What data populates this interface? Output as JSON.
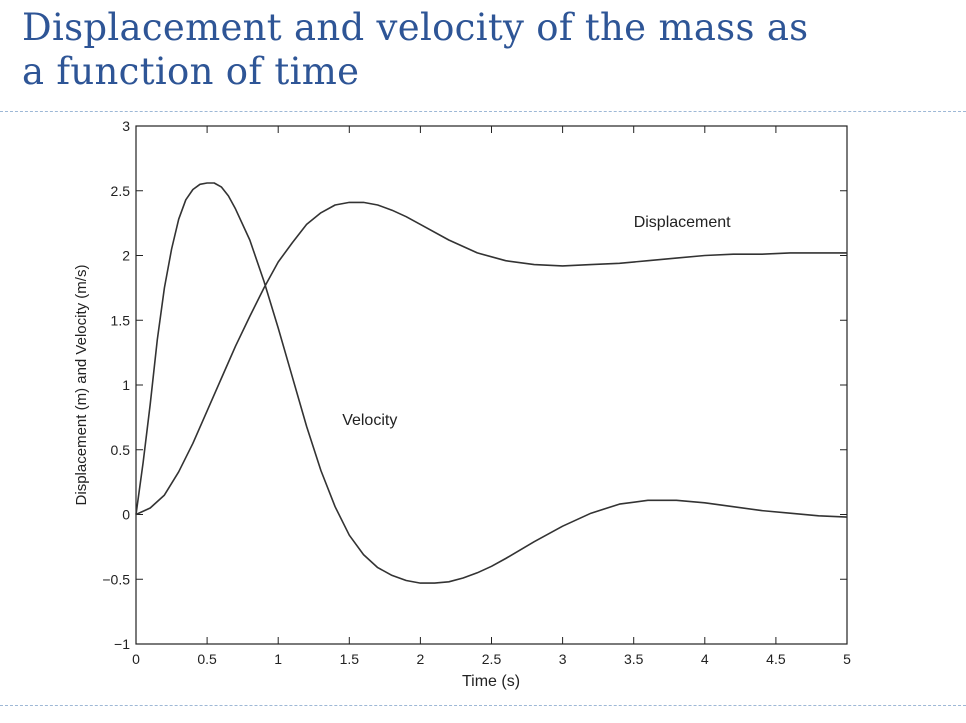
{
  "slide": {
    "title_line1": "Displacement and velocity of the mass as",
    "title_line2": "a function of time"
  },
  "chart_data": {
    "type": "line",
    "title": "",
    "xlabel": "Time (s)",
    "ylabel": "Displacement (m) and Velocity (m/s)",
    "xlim": [
      0,
      5
    ],
    "ylim": [
      -1,
      3
    ],
    "xticks": [
      0,
      0.5,
      1,
      1.5,
      2,
      2.5,
      3,
      3.5,
      4,
      4.5,
      5
    ],
    "yticks": [
      -1,
      -0.5,
      0,
      0.5,
      1,
      1.5,
      2,
      2.5,
      3
    ],
    "xtick_labels": [
      "0",
      "0.5",
      "1",
      "1.5",
      "2",
      "2.5",
      "3",
      "3.5",
      "4",
      "4.5",
      "5"
    ],
    "ytick_labels": [
      "−1",
      "−0.5",
      "0",
      "0.5",
      "1",
      "1.5",
      "2",
      "2.5",
      "3"
    ],
    "grid": false,
    "line_color": "#333333",
    "series": [
      {
        "name": "Displacement",
        "x": [
          0,
          0.1,
          0.2,
          0.3,
          0.4,
          0.5,
          0.6,
          0.7,
          0.8,
          0.9,
          1.0,
          1.1,
          1.2,
          1.3,
          1.4,
          1.5,
          1.6,
          1.7,
          1.8,
          1.9,
          2.0,
          2.2,
          2.4,
          2.6,
          2.8,
          3.0,
          3.2,
          3.4,
          3.6,
          3.8,
          4.0,
          4.2,
          4.4,
          4.6,
          4.8,
          5.0
        ],
        "y": [
          0,
          0.05,
          0.15,
          0.33,
          0.55,
          0.8,
          1.05,
          1.3,
          1.53,
          1.75,
          1.95,
          2.1,
          2.24,
          2.33,
          2.39,
          2.41,
          2.41,
          2.39,
          2.35,
          2.3,
          2.24,
          2.12,
          2.02,
          1.96,
          1.93,
          1.92,
          1.93,
          1.94,
          1.96,
          1.98,
          2.0,
          2.01,
          2.01,
          2.02,
          2.02,
          2.02
        ]
      },
      {
        "name": "Velocity",
        "x": [
          0,
          0.05,
          0.1,
          0.15,
          0.2,
          0.25,
          0.3,
          0.35,
          0.4,
          0.45,
          0.5,
          0.55,
          0.6,
          0.65,
          0.7,
          0.8,
          0.9,
          1.0,
          1.1,
          1.2,
          1.3,
          1.4,
          1.5,
          1.6,
          1.7,
          1.8,
          1.9,
          2.0,
          2.1,
          2.2,
          2.3,
          2.4,
          2.5,
          2.6,
          2.8,
          3.0,
          3.2,
          3.4,
          3.6,
          3.8,
          4.0,
          4.2,
          4.4,
          4.6,
          4.8,
          5.0
        ],
        "y": [
          0,
          0.4,
          0.85,
          1.35,
          1.75,
          2.05,
          2.28,
          2.43,
          2.51,
          2.55,
          2.56,
          2.56,
          2.53,
          2.46,
          2.36,
          2.12,
          1.8,
          1.44,
          1.06,
          0.68,
          0.34,
          0.06,
          -0.16,
          -0.31,
          -0.41,
          -0.47,
          -0.51,
          -0.53,
          -0.53,
          -0.52,
          -0.49,
          -0.45,
          -0.4,
          -0.34,
          -0.21,
          -0.09,
          0.01,
          0.08,
          0.11,
          0.11,
          0.09,
          0.06,
          0.03,
          0.01,
          -0.01,
          -0.02
        ]
      }
    ],
    "annotations": [
      {
        "text": "Displacement",
        "x": 3.5,
        "y": 2.22
      },
      {
        "text": "Velocity",
        "x": 1.45,
        "y": 0.69
      }
    ]
  }
}
